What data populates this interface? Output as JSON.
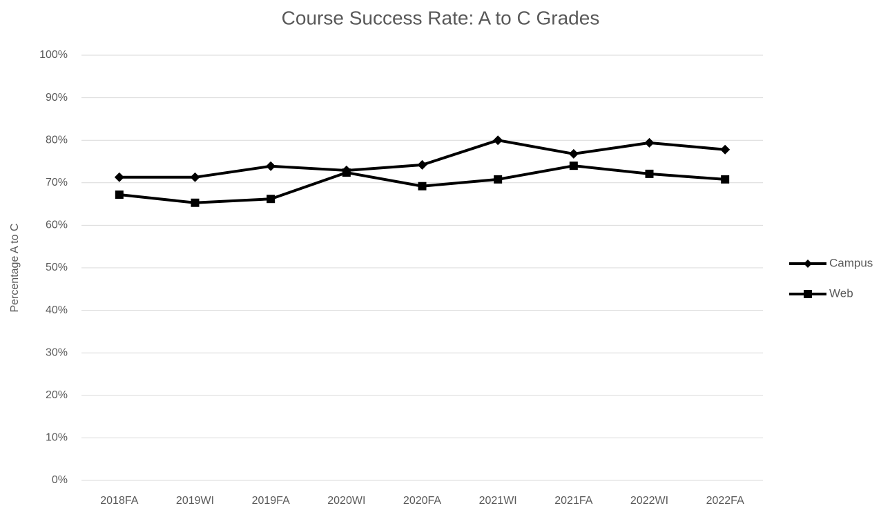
{
  "chart_data": {
    "type": "line",
    "title": "Course Success Rate: A to C Grades",
    "y_label": "Percentage A to C",
    "categories": [
      "2018FA",
      "2019WI",
      "2019FA",
      "2020WI",
      "2020FA",
      "2021WI",
      "2021FA",
      "2022WI",
      "2022FA"
    ],
    "series": [
      {
        "name": "Campus",
        "color": "#000000",
        "marker": "diamond",
        "values": [
          71.3,
          71.3,
          73.9,
          72.9,
          74.2,
          80.0,
          76.8,
          79.4,
          77.8
        ]
      },
      {
        "name": "Web",
        "color": "#000000",
        "marker": "square",
        "values": [
          67.2,
          65.3,
          66.2,
          72.4,
          69.2,
          70.8,
          74.0,
          72.1,
          70.8
        ]
      }
    ],
    "ylim": [
      0,
      100
    ],
    "yticks": [
      {
        "value": 0,
        "label": "0%"
      },
      {
        "value": 10,
        "label": "10%"
      },
      {
        "value": 20,
        "label": "20%"
      },
      {
        "value": 30,
        "label": "30%"
      },
      {
        "value": 40,
        "label": "40%"
      },
      {
        "value": 50,
        "label": "50%"
      },
      {
        "value": 60,
        "label": "60%"
      },
      {
        "value": 70,
        "label": "70%"
      },
      {
        "value": 80,
        "label": "80%"
      },
      {
        "value": 90,
        "label": "90%"
      },
      {
        "value": 100,
        "label": "100%"
      }
    ],
    "grid": true,
    "legend": "right"
  }
}
